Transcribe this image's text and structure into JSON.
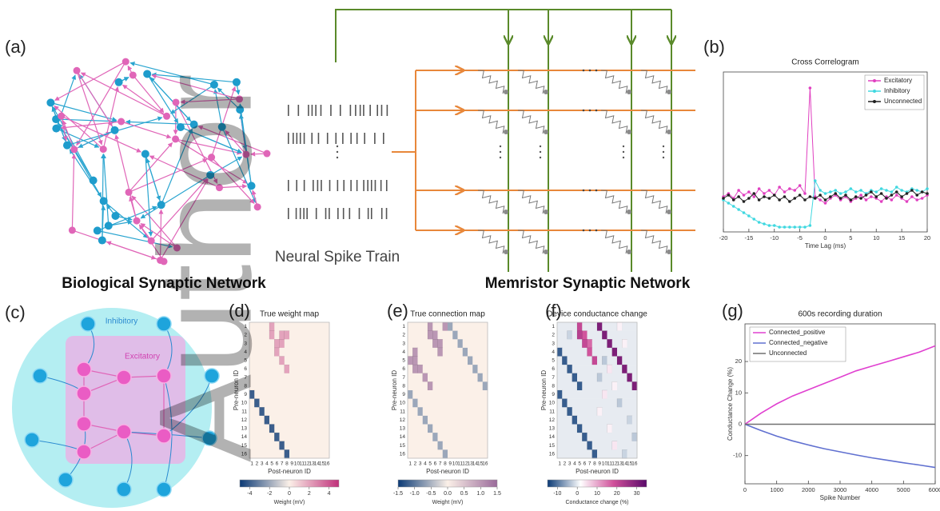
{
  "labels": {
    "a": "(a)",
    "b": "(b)",
    "c": "(c)",
    "d": "(d)",
    "e": "(e)",
    "f": "(f)",
    "g": "(g)"
  },
  "panel_a": {
    "network_title": "Biological Synaptic Network",
    "spike_title": "Neural Spike Train",
    "crossbar_title": "Memristor Synaptic Network"
  },
  "panel_c": {
    "inhibitory": "Inhibitory",
    "excitatory": "Excitatory"
  },
  "watermark": "Author",
  "chart_data": [
    {
      "type": "line",
      "title": "Cross Correlogram",
      "x_label": "Time Lag (ms)",
      "x": [
        -20,
        -19,
        -18,
        -17,
        -16,
        -15,
        -14,
        -13,
        -12,
        -11,
        -10,
        -9,
        -8,
        -7,
        -6,
        -5,
        -4,
        -3,
        -2,
        -1,
        0,
        1,
        2,
        3,
        4,
        5,
        6,
        7,
        8,
        9,
        10,
        11,
        12,
        13,
        14,
        15,
        16,
        17,
        18,
        19,
        20
      ],
      "xlim": [
        -20,
        20
      ],
      "xticks": [
        -20,
        -15,
        -10,
        -5,
        0,
        5,
        10,
        15,
        20
      ],
      "ylim": [
        0,
        10
      ],
      "markers": true,
      "legend": "upper right",
      "series": [
        {
          "name": "Excitatory",
          "color": "#e040c0",
          "values": [
            2.2,
            2.4,
            2.1,
            2.6,
            2.3,
            2.5,
            2.2,
            2.7,
            2.4,
            2.6,
            2.3,
            2.8,
            2.5,
            2.7,
            2.6,
            2.9,
            2.4,
            9.0,
            2.2,
            2.0,
            1.8,
            2.1,
            2.3,
            2.0,
            2.2,
            1.9,
            2.1,
            2.3,
            2.0,
            2.2,
            2.1,
            1.9,
            2.2,
            2.0,
            2.3,
            2.1,
            1.9,
            2.2,
            2.0,
            2.1,
            2.3
          ]
        },
        {
          "name": "Inhibitory",
          "color": "#40d8e0",
          "values": [
            2.0,
            1.8,
            1.6,
            1.4,
            1.2,
            1.0,
            0.8,
            0.6,
            0.5,
            0.4,
            0.4,
            0.3,
            0.3,
            0.3,
            0.3,
            0.3,
            0.3,
            0.4,
            3.2,
            2.6,
            2.4,
            2.5,
            2.6,
            2.4,
            2.5,
            2.7,
            2.5,
            2.6,
            2.4,
            2.6,
            2.5,
            2.7,
            2.6,
            2.5,
            2.8,
            2.6,
            2.5,
            2.7,
            2.6,
            2.5,
            2.7
          ]
        },
        {
          "name": "Unconnected",
          "color": "#202020",
          "values": [
            2.1,
            2.3,
            2.0,
            2.2,
            1.9,
            2.1,
            2.4,
            2.0,
            2.2,
            2.1,
            2.3,
            2.0,
            2.2,
            1.9,
            2.1,
            2.3,
            2.0,
            2.2,
            2.1,
            2.3,
            2.0,
            2.2,
            2.4,
            2.1,
            2.3,
            2.0,
            2.2,
            2.1,
            2.3,
            2.5,
            2.2,
            2.4,
            2.1,
            2.3,
            2.5,
            2.2,
            2.4,
            2.6,
            2.3,
            2.5,
            2.4
          ]
        }
      ]
    },
    {
      "type": "heatmap",
      "title": "True weight map",
      "x_label": "Post-neuron ID",
      "y_label": "Pre-neuron ID",
      "x_categories": [
        1,
        2,
        3,
        4,
        5,
        6,
        7,
        8,
        9,
        10,
        11,
        12,
        13,
        14,
        15,
        16
      ],
      "y_categories": [
        1,
        2,
        3,
        4,
        5,
        6,
        7,
        8,
        9,
        10,
        11,
        12,
        13,
        14,
        15,
        16
      ],
      "colormap": [
        "#0b3a75",
        "#fbf0e8",
        "#c0307a"
      ],
      "colorbar": {
        "label": "Weight (mV)",
        "lim": [
          -5,
          5
        ],
        "ticks": [
          -4,
          -2,
          0,
          2,
          4
        ]
      },
      "z": [
        [
          0,
          0,
          0,
          0,
          2,
          0,
          0,
          0,
          0,
          0,
          0,
          0,
          0,
          0,
          0,
          0
        ],
        [
          0,
          0,
          0,
          0,
          2,
          0,
          2,
          2,
          0,
          0,
          0,
          0,
          0,
          0,
          0,
          0
        ],
        [
          0,
          0,
          0,
          0,
          0,
          2,
          2,
          0,
          0,
          0,
          0,
          0,
          0,
          0,
          0,
          0
        ],
        [
          0,
          0,
          0,
          0,
          0,
          2,
          0,
          0,
          0,
          0,
          0,
          0,
          0,
          0,
          0,
          0
        ],
        [
          0,
          0,
          0,
          0,
          0,
          0,
          2,
          0,
          0,
          0,
          0,
          0,
          0,
          0,
          0,
          0
        ],
        [
          0,
          0,
          0,
          0,
          0,
          0,
          0,
          2,
          0,
          0,
          0,
          0,
          0,
          0,
          0,
          0
        ],
        [
          0,
          0,
          0,
          0,
          0,
          0,
          0,
          0,
          0,
          0,
          0,
          0,
          0,
          0,
          0,
          0
        ],
        [
          0,
          0,
          0,
          0,
          0,
          0,
          0,
          0,
          0,
          0,
          0,
          0,
          0,
          0,
          0,
          0
        ],
        [
          -4,
          0,
          0,
          0,
          0,
          0,
          0,
          0,
          0,
          0,
          0,
          0,
          0,
          0,
          0,
          0
        ],
        [
          0,
          -4,
          0,
          0,
          0,
          0,
          0,
          0,
          0,
          0,
          0,
          0,
          0,
          0,
          0,
          0
        ],
        [
          0,
          0,
          -4,
          0,
          0,
          0,
          0,
          0,
          0,
          0,
          0,
          0,
          0,
          0,
          0,
          0
        ],
        [
          0,
          0,
          0,
          -4,
          0,
          0,
          0,
          0,
          0,
          0,
          0,
          0,
          0,
          0,
          0,
          0
        ],
        [
          0,
          0,
          0,
          0,
          -4,
          0,
          0,
          0,
          0,
          0,
          0,
          0,
          0,
          0,
          0,
          0
        ],
        [
          0,
          0,
          0,
          0,
          0,
          -4,
          0,
          0,
          0,
          0,
          0,
          0,
          0,
          0,
          0,
          0
        ],
        [
          0,
          0,
          0,
          0,
          0,
          0,
          -4,
          0,
          0,
          0,
          0,
          0,
          0,
          0,
          0,
          0
        ],
        [
          0,
          0,
          0,
          0,
          0,
          0,
          0,
          -4,
          0,
          0,
          0,
          0,
          0,
          0,
          0,
          0
        ]
      ]
    },
    {
      "type": "heatmap",
      "title": "True connection map",
      "x_label": "Post-neuron ID",
      "y_label": "Pre-neuron ID",
      "x_categories": [
        1,
        2,
        3,
        4,
        5,
        6,
        7,
        8,
        9,
        10,
        11,
        12,
        13,
        14,
        15,
        16
      ],
      "y_categories": [
        1,
        2,
        3,
        4,
        5,
        6,
        7,
        8,
        9,
        10,
        11,
        12,
        13,
        14,
        15,
        16
      ],
      "colormap": [
        "#0b3a75",
        "#fbf0e8",
        "#9a6a9a"
      ],
      "colorbar": {
        "label": "Weight (mV)",
        "lim": [
          -1.5,
          1.5
        ],
        "ticks": [
          -1.5,
          {
            "value": -1,
            "label": "-1.0"
          },
          -0.5,
          {
            "value": 0,
            "label": "0.0"
          },
          0.5,
          {
            "value": 1,
            "label": "1.0"
          },
          1.5
        ]
      },
      "z": [
        [
          0,
          0,
          0,
          0,
          1,
          0,
          0,
          1,
          -0.6,
          0,
          0,
          0,
          0,
          0,
          0,
          0
        ],
        [
          0,
          0,
          0,
          0,
          1,
          1,
          0,
          0,
          0,
          -0.6,
          0,
          0,
          0,
          0,
          0,
          0
        ],
        [
          0,
          0,
          0,
          0,
          0,
          1,
          1,
          0,
          0,
          0,
          -0.6,
          0,
          0,
          0,
          0,
          0
        ],
        [
          0,
          1,
          0,
          0,
          0,
          0,
          1,
          0,
          0,
          0,
          0,
          -0.6,
          0,
          0,
          0,
          0
        ],
        [
          1,
          1,
          0,
          0,
          0,
          0,
          0,
          0,
          0,
          0,
          0,
          0,
          -0.6,
          0,
          0,
          0
        ],
        [
          0,
          1,
          1,
          0,
          0,
          0,
          0,
          0,
          0,
          0,
          0,
          0,
          0,
          -0.6,
          0,
          0
        ],
        [
          0,
          0,
          0,
          1,
          0,
          0,
          0,
          0,
          0,
          0,
          0,
          0,
          0,
          0,
          -0.6,
          0
        ],
        [
          0,
          0,
          0,
          0,
          1,
          0,
          0,
          0,
          0,
          0,
          0,
          0,
          0,
          0,
          0,
          -0.6
        ],
        [
          -0.6,
          0,
          0,
          0,
          0,
          0,
          0,
          0,
          0,
          0,
          0,
          0,
          0,
          0,
          0,
          0
        ],
        [
          0,
          -0.6,
          0,
          0,
          0,
          0,
          0,
          0,
          0,
          0,
          0,
          0,
          0,
          0,
          0,
          0
        ],
        [
          0,
          0,
          -0.6,
          0,
          0,
          0,
          0,
          0,
          0,
          0,
          0,
          0,
          0,
          0,
          0,
          0
        ],
        [
          0,
          0,
          0,
          -0.6,
          0,
          0,
          0,
          0,
          0,
          0,
          0,
          0,
          0,
          0,
          0,
          0
        ],
        [
          0,
          0,
          0,
          0,
          -0.6,
          0,
          0,
          0,
          0,
          0,
          0,
          0,
          0,
          0,
          0,
          0
        ],
        [
          0,
          0,
          0,
          0,
          0,
          -0.6,
          0,
          0,
          0,
          0,
          0,
          0,
          0,
          0,
          0,
          0
        ],
        [
          0,
          0,
          0,
          0,
          0,
          0,
          -0.6,
          0,
          0,
          0,
          0,
          0,
          0,
          0,
          0,
          0
        ],
        [
          0,
          0,
          0,
          0,
          0,
          0,
          0,
          -0.6,
          0,
          0,
          0,
          0,
          0,
          0,
          0,
          0
        ]
      ]
    },
    {
      "type": "heatmap",
      "title": "Device conductance change",
      "x_label": "Post-neuron ID",
      "y_label": "Pre-neuron ID",
      "x_categories": [
        1,
        2,
        3,
        4,
        5,
        6,
        7,
        8,
        9,
        10,
        11,
        12,
        13,
        14,
        15,
        16
      ],
      "y_categories": [
        1,
        2,
        3,
        4,
        5,
        6,
        7,
        8,
        9,
        10,
        11,
        12,
        13,
        14,
        15,
        16
      ],
      "colormap": [
        "#0b3a75",
        "#ffffff",
        "#d0509a",
        "#5a0a6a"
      ],
      "colorbar": {
        "label": "Conductance change (%)",
        "lim": [
          -15,
          35
        ],
        "ticks": [
          -10,
          0,
          10,
          20,
          30
        ]
      },
      "z": [
        [
          0,
          0,
          0,
          0,
          20,
          0,
          0,
          0,
          30,
          0,
          0,
          0,
          3,
          0,
          0,
          0
        ],
        [
          0,
          0,
          -2,
          0,
          22,
          18,
          0,
          0,
          0,
          30,
          0,
          0,
          0,
          0,
          0,
          0
        ],
        [
          0,
          0,
          0,
          0,
          0,
          20,
          16,
          0,
          0,
          0,
          30,
          0,
          0,
          3,
          0,
          0
        ],
        [
          -12,
          0,
          0,
          0,
          0,
          0,
          18,
          0,
          0,
          0,
          0,
          30,
          0,
          0,
          0,
          0
        ],
        [
          0,
          -12,
          0,
          0,
          0,
          0,
          0,
          20,
          0,
          -3,
          0,
          0,
          30,
          0,
          0,
          0
        ],
        [
          0,
          0,
          -12,
          0,
          0,
          0,
          0,
          0,
          0,
          0,
          4,
          0,
          0,
          30,
          0,
          0
        ],
        [
          0,
          0,
          0,
          -12,
          0,
          0,
          0,
          0,
          -3,
          0,
          0,
          0,
          0,
          0,
          30,
          0
        ],
        [
          0,
          0,
          0,
          0,
          -12,
          0,
          0,
          0,
          0,
          0,
          0,
          3,
          0,
          0,
          0,
          30
        ],
        [
          -12,
          0,
          0,
          0,
          0,
          0,
          0,
          0,
          0,
          4,
          0,
          0,
          0,
          0,
          0,
          0
        ],
        [
          0,
          -12,
          0,
          0,
          0,
          0,
          0,
          0,
          0,
          0,
          0,
          0,
          -3,
          0,
          0,
          0
        ],
        [
          0,
          0,
          -12,
          0,
          0,
          0,
          0,
          0,
          3,
          0,
          0,
          0,
          0,
          0,
          0,
          0
        ],
        [
          0,
          0,
          0,
          -12,
          0,
          0,
          0,
          0,
          0,
          0,
          0,
          0,
          0,
          0,
          -2,
          0
        ],
        [
          0,
          0,
          0,
          0,
          -12,
          0,
          0,
          0,
          0,
          0,
          3,
          0,
          0,
          0,
          0,
          0
        ],
        [
          0,
          0,
          0,
          0,
          0,
          -12,
          0,
          0,
          0,
          0,
          0,
          0,
          0,
          0,
          0,
          -3
        ],
        [
          0,
          0,
          0,
          0,
          0,
          0,
          -12,
          0,
          0,
          0,
          0,
          4,
          0,
          0,
          0,
          0
        ],
        [
          0,
          0,
          0,
          0,
          0,
          0,
          0,
          -12,
          0,
          0,
          0,
          0,
          0,
          -2,
          0,
          0
        ]
      ]
    },
    {
      "type": "line",
      "title": "600s recording duration",
      "x_label": "Spike Number",
      "y_label": "Conductance Change (%)",
      "x": [
        0,
        500,
        1000,
        1500,
        2000,
        2500,
        3000,
        3500,
        4000,
        4500,
        5000,
        5500,
        6000
      ],
      "xlim": [
        0,
        6000
      ],
      "xticks": [
        0,
        1000,
        2000,
        3000,
        4000,
        5000,
        6000
      ],
      "ylim": [
        -19,
        32
      ],
      "yticks": [
        -10,
        0,
        10,
        20
      ],
      "markers": false,
      "legend": "upper left",
      "series": [
        {
          "name": "Connected_positive",
          "color": "#e040d0",
          "values": [
            0,
            3.5,
            6.5,
            9,
            11,
            13,
            15,
            17,
            18.5,
            20,
            21.5,
            23,
            25
          ]
        },
        {
          "name": "Connected_negative",
          "color": "#6070d0",
          "values": [
            0,
            -2,
            -3.8,
            -5.3,
            -6.6,
            -7.8,
            -8.8,
            -9.8,
            -10.7,
            -11.5,
            -12.3,
            -13,
            -13.8
          ]
        },
        {
          "name": "Unconnected",
          "color": "#707070",
          "values": [
            0,
            0,
            0,
            0,
            0,
            0,
            0,
            0,
            0,
            0,
            0,
            0,
            0
          ]
        }
      ]
    }
  ]
}
